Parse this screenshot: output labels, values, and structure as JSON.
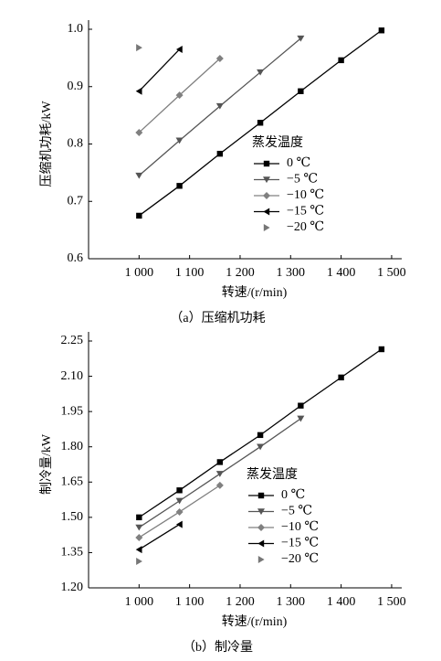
{
  "chart_data": [
    {
      "type": "line",
      "caption": "（a）压缩机功耗",
      "x_label": "转速/(r/min)",
      "y_label": "压缩机功耗/kW",
      "legend_title": "蒸发温度",
      "xlim": [
        900,
        1520
      ],
      "xticks": [
        {
          "value": 1000,
          "label": "1 000"
        },
        {
          "value": 1100,
          "label": "1 100"
        },
        {
          "value": 1200,
          "label": "1 200"
        },
        {
          "value": 1300,
          "label": "1 300"
        },
        {
          "value": 1400,
          "label": "1 400"
        },
        {
          "value": 1500,
          "label": "1 500"
        }
      ],
      "ylim": [
        0.6,
        1.0
      ],
      "yticks": [
        0.6,
        0.7,
        0.8,
        0.9,
        {
          "value": 1.0,
          "label": "1.0"
        }
      ],
      "series": [
        {
          "name": "0 ℃",
          "color": "#000000",
          "marker": "square",
          "line": true,
          "x": [
            1000,
            1080,
            1160,
            1240,
            1320,
            1400,
            1480
          ],
          "values": [
            0.675,
            0.727,
            0.783,
            0.837,
            0.892,
            0.946,
            0.998
          ]
        },
        {
          "name": "−5 ℃",
          "color": "#555555",
          "marker": "triangle-down",
          "line": true,
          "x": [
            1000,
            1080,
            1160,
            1240,
            1320
          ],
          "values": [
            0.745,
            0.806,
            0.866,
            0.925,
            0.984
          ]
        },
        {
          "name": "−10 ℃",
          "color": "#808080",
          "marker": "diamond",
          "line": true,
          "x": [
            1000,
            1080,
            1160
          ],
          "values": [
            0.82,
            0.885,
            0.949
          ]
        },
        {
          "name": "−15 ℃",
          "color": "#000000",
          "marker": "triangle-left",
          "line": true,
          "x": [
            1000,
            1080
          ],
          "values": [
            0.892,
            0.965
          ]
        },
        {
          "name": "−20 ℃",
          "color": "#777777",
          "marker": "triangle-right",
          "line": false,
          "x": [
            1000
          ],
          "values": [
            0.968
          ]
        }
      ]
    },
    {
      "type": "line",
      "caption": "（b）制冷量",
      "x_label": "转速/(r/min)",
      "y_label": "制冷量/kW",
      "legend_title": "蒸发温度",
      "xlim": [
        900,
        1520
      ],
      "xticks": [
        {
          "value": 1000,
          "label": "1 000"
        },
        {
          "value": 1100,
          "label": "1 100"
        },
        {
          "value": 1200,
          "label": "1 200"
        },
        {
          "value": 1300,
          "label": "1 300"
        },
        {
          "value": 1400,
          "label": "1 400"
        },
        {
          "value": 1500,
          "label": "1 500"
        }
      ],
      "ylim": [
        1.2,
        2.25
      ],
      "yticks": [
        {
          "value": 1.2,
          "label": "1.20"
        },
        1.35,
        {
          "value": 1.5,
          "label": "1.50"
        },
        1.65,
        {
          "value": 1.8,
          "label": "1.80"
        },
        1.95,
        {
          "value": 2.1,
          "label": "2.10"
        },
        2.25
      ],
      "series": [
        {
          "name": "0 ℃",
          "color": "#000000",
          "marker": "square",
          "line": true,
          "x": [
            1000,
            1080,
            1160,
            1240,
            1320,
            1400,
            1480
          ],
          "values": [
            1.5,
            1.615,
            1.735,
            1.85,
            1.975,
            2.095,
            2.215
          ]
        },
        {
          "name": "−5 ℃",
          "color": "#555555",
          "marker": "triangle-down",
          "line": true,
          "x": [
            1000,
            1080,
            1160,
            1240,
            1320
          ],
          "values": [
            1.457,
            1.57,
            1.685,
            1.8,
            1.92
          ]
        },
        {
          "name": "−10 ℃",
          "color": "#808080",
          "marker": "diamond",
          "line": true,
          "x": [
            1000,
            1080,
            1160
          ],
          "values": [
            1.414,
            1.523,
            1.636
          ]
        },
        {
          "name": "−15 ℃",
          "color": "#000000",
          "marker": "triangle-left",
          "line": true,
          "x": [
            1000,
            1080
          ],
          "values": [
            1.363,
            1.47
          ]
        },
        {
          "name": "−20 ℃",
          "color": "#777777",
          "marker": "triangle-right",
          "line": false,
          "x": [
            1000
          ],
          "values": [
            1.313
          ]
        }
      ]
    }
  ]
}
